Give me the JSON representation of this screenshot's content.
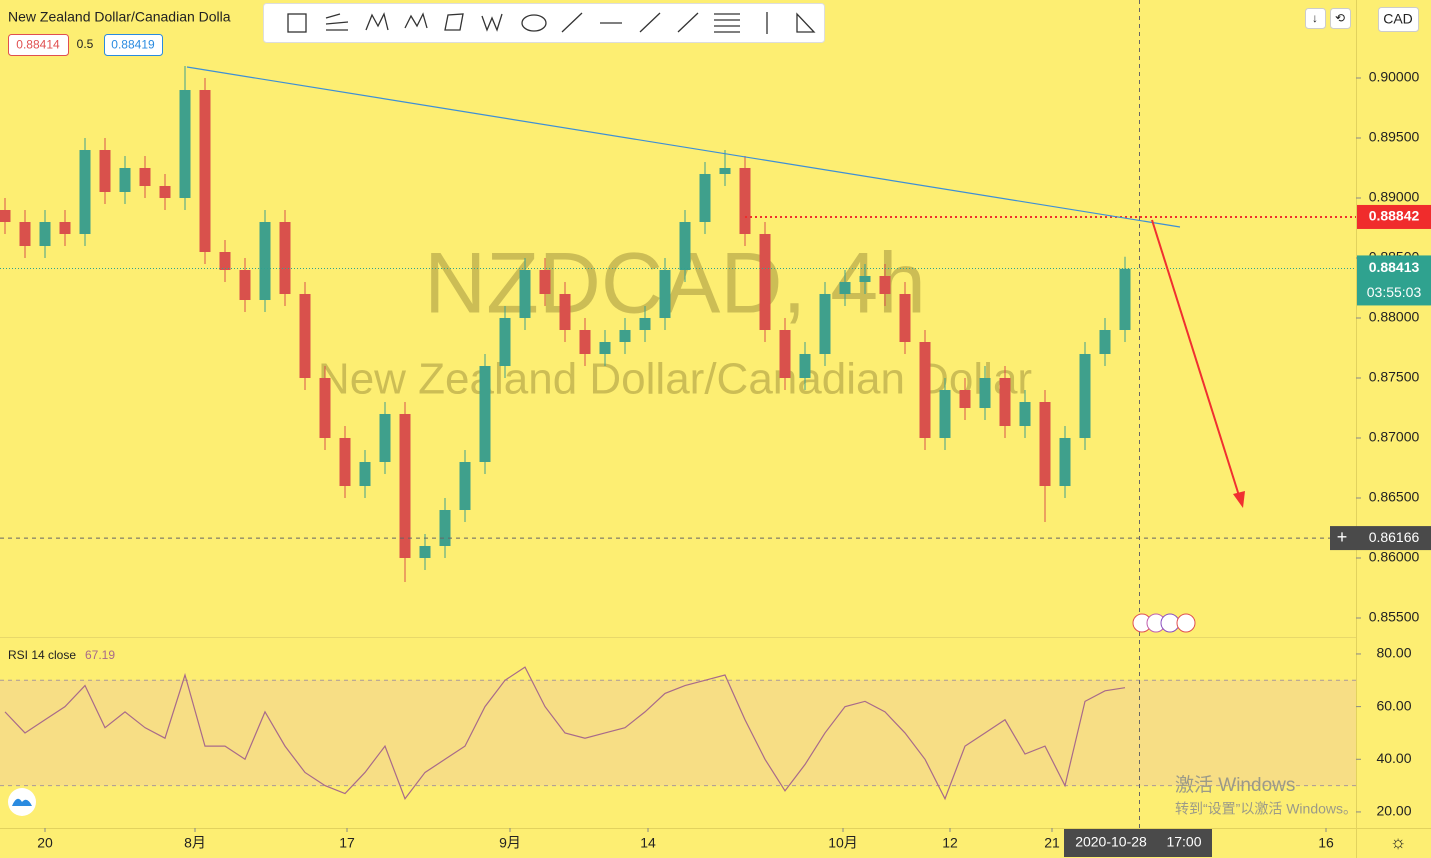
{
  "header": {
    "symbol_title": "New Zealand Dollar/Canadian Dolla",
    "bid": "0.88414",
    "spread": "0.5",
    "ask": "0.88419"
  },
  "watermark": {
    "symbol": "NZDCAD, 4h",
    "description": "New Zealand Dollar/Canadian Dollar"
  },
  "currency": "CAD",
  "countdown": "03:55:03",
  "crosshair": {
    "date": "2020-10-28",
    "time": "17:00"
  },
  "windows_notice": {
    "title": "激活 Windows",
    "subtitle": "转到“设置”以激活 Windows。"
  },
  "chart_data": [
    {
      "type": "candlestick",
      "up_color": "#3fa08c",
      "down_color": "#d9514c",
      "open": [
        0.889,
        0.888,
        0.886,
        0.888,
        0.887,
        0.894,
        0.8905,
        0.8925,
        0.891,
        0.89,
        0.899,
        0.8855,
        0.884,
        0.8815,
        0.888,
        0.882,
        0.875,
        0.87,
        0.866,
        0.868,
        0.872,
        0.86,
        0.861,
        0.864,
        0.868,
        0.876,
        0.88,
        0.884,
        0.882,
        0.879,
        0.877,
        0.878,
        0.879,
        0.88,
        0.884,
        0.888,
        0.892,
        0.8925,
        0.887,
        0.879,
        0.875,
        0.877,
        0.882,
        0.883,
        0.8835,
        0.882,
        0.878,
        0.87,
        0.874,
        0.8725,
        0.875,
        0.871,
        0.873,
        0.866,
        0.87,
        0.877,
        0.879
      ],
      "high": [
        0.89,
        0.889,
        0.889,
        0.889,
        0.895,
        0.895,
        0.8935,
        0.8935,
        0.892,
        0.901,
        0.9,
        0.8865,
        0.885,
        0.889,
        0.889,
        0.883,
        0.876,
        0.871,
        0.869,
        0.873,
        0.873,
        0.862,
        0.865,
        0.869,
        0.877,
        0.881,
        0.885,
        0.885,
        0.883,
        0.88,
        0.879,
        0.88,
        0.881,
        0.885,
        0.889,
        0.893,
        0.894,
        0.8935,
        0.888,
        0.88,
        0.878,
        0.883,
        0.884,
        0.8845,
        0.8845,
        0.883,
        0.879,
        0.875,
        0.875,
        0.876,
        0.876,
        0.874,
        0.874,
        0.871,
        0.878,
        0.88,
        0.8851
      ],
      "low": [
        0.887,
        0.885,
        0.885,
        0.886,
        0.886,
        0.8895,
        0.8895,
        0.89,
        0.889,
        0.889,
        0.8845,
        0.883,
        0.8805,
        0.8805,
        0.881,
        0.874,
        0.869,
        0.865,
        0.865,
        0.867,
        0.858,
        0.859,
        0.86,
        0.863,
        0.867,
        0.875,
        0.879,
        0.881,
        0.878,
        0.876,
        0.876,
        0.877,
        0.878,
        0.879,
        0.883,
        0.887,
        0.891,
        0.886,
        0.878,
        0.874,
        0.874,
        0.876,
        0.881,
        0.882,
        0.881,
        0.877,
        0.869,
        0.869,
        0.8715,
        0.8715,
        0.87,
        0.87,
        0.863,
        0.865,
        0.869,
        0.876,
        0.878
      ],
      "close": [
        0.888,
        0.886,
        0.888,
        0.887,
        0.894,
        0.8905,
        0.8925,
        0.891,
        0.89,
        0.899,
        0.8855,
        0.884,
        0.8815,
        0.888,
        0.882,
        0.875,
        0.87,
        0.866,
        0.868,
        0.872,
        0.86,
        0.861,
        0.864,
        0.868,
        0.876,
        0.88,
        0.884,
        0.882,
        0.879,
        0.877,
        0.878,
        0.879,
        0.88,
        0.884,
        0.888,
        0.892,
        0.8925,
        0.887,
        0.879,
        0.875,
        0.877,
        0.882,
        0.883,
        0.8835,
        0.882,
        0.878,
        0.87,
        0.874,
        0.8725,
        0.875,
        0.871,
        0.873,
        0.866,
        0.87,
        0.877,
        0.879,
        0.8841
      ],
      "ylim": [
        0.8535,
        0.9065
      ],
      "yticks": [
        {
          "value": 0.855,
          "label": "0.85500"
        },
        {
          "value": 0.86,
          "label": "0.86000"
        },
        {
          "value": 0.865,
          "label": "0.86500"
        },
        {
          "value": 0.87,
          "label": "0.87000"
        },
        {
          "value": 0.875,
          "label": "0.87500"
        },
        {
          "value": 0.88,
          "label": "0.88000"
        },
        {
          "value": 0.885,
          "label": "0.88500"
        },
        {
          "value": 0.89,
          "label": "0.89000"
        },
        {
          "value": 0.895,
          "label": "0.89500"
        },
        {
          "value": 0.9,
          "label": "0.90000"
        }
      ],
      "xlim": [
        -0.25,
        67.55
      ],
      "xticks": [
        {
          "value": 2,
          "label": "20"
        },
        {
          "value": 9.5,
          "label": "8月"
        },
        {
          "value": 17.1,
          "label": "17"
        },
        {
          "value": 25.25,
          "label": "9月"
        },
        {
          "value": 32.15,
          "label": "14"
        },
        {
          "value": 41.9,
          "label": "10月"
        },
        {
          "value": 47.25,
          "label": "12"
        },
        {
          "value": 52.35,
          "label": "21"
        },
        {
          "value": 66.05,
          "label": "16"
        }
      ],
      "alert_price": {
        "value": 0.88842,
        "label": "0.88842",
        "color": "#f02c2c"
      },
      "last_price": {
        "value": 0.88413,
        "label": "0.88413",
        "color": "#2fa28f"
      },
      "crosshair_price": {
        "value": 0.86166,
        "label": "0.86166"
      }
    },
    {
      "type": "line",
      "title": "RSI 14 close",
      "color": "#a86a8a",
      "band": [
        30,
        70
      ],
      "band_color": "#f5d98a",
      "values": [
        58,
        50,
        55,
        60,
        68,
        52,
        58,
        52,
        48,
        72,
        45,
        45,
        40,
        58,
        45,
        35,
        30,
        27,
        35,
        45,
        25,
        35,
        40,
        45,
        60,
        70,
        75,
        60,
        50,
        48,
        50,
        52,
        58,
        65,
        68,
        70,
        72,
        55,
        40,
        28,
        38,
        50,
        60,
        62,
        58,
        50,
        40,
        25,
        45,
        50,
        55,
        42,
        45,
        30,
        62,
        66,
        67.19
      ],
      "ylim": [
        13.9,
        85.3
      ],
      "yticks": [
        {
          "value": 20,
          "label": "20.00"
        },
        {
          "value": 40,
          "label": "40.00"
        },
        {
          "value": 60,
          "label": "60.00"
        },
        {
          "value": 80,
          "label": "80.00"
        }
      ]
    }
  ]
}
